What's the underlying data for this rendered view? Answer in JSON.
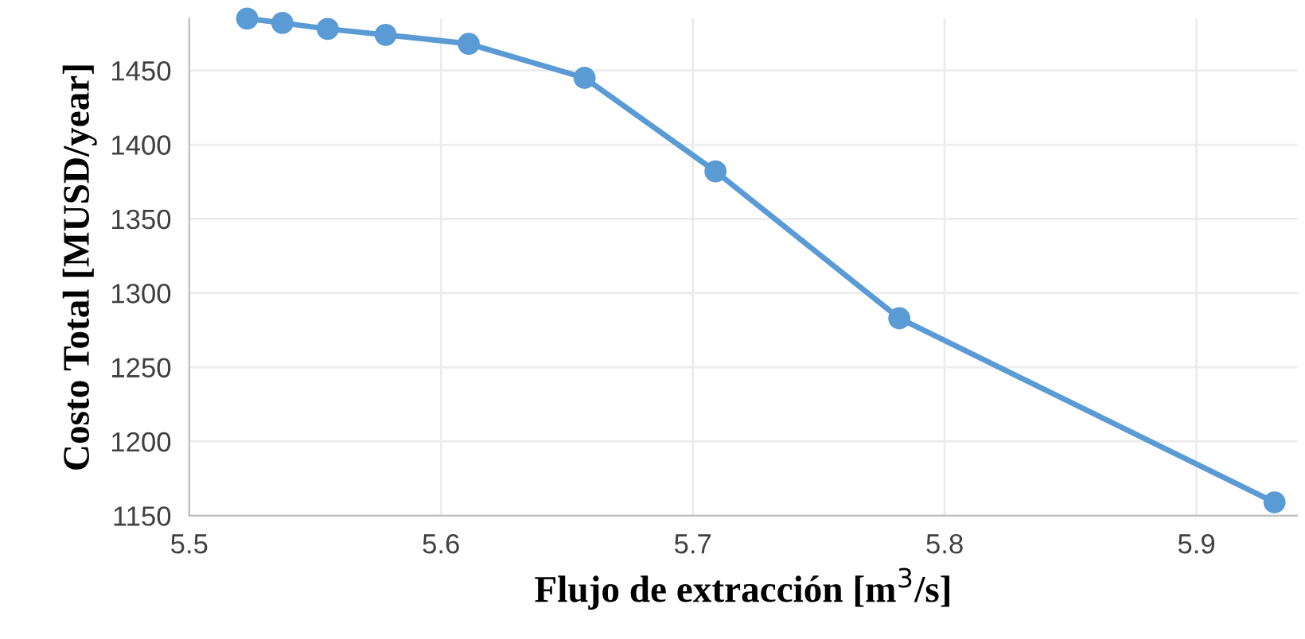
{
  "chart_data": {
    "type": "line",
    "xlabel": "Flujo de extracción [m$^{3}$/s]",
    "ylabel": "Costo Total [MUSD/year]",
    "x": [
      5.523,
      5.537,
      5.555,
      5.578,
      5.611,
      5.657,
      5.709,
      5.782,
      5.931
    ],
    "series": [
      {
        "color": "#5b9bd5",
        "values": [
          1485,
          1482,
          1478,
          1474,
          1468,
          1445,
          1382,
          1283,
          1159
        ]
      }
    ],
    "xlim": [
      5.5,
      5.94
    ],
    "xticks": [
      {
        "value": 5.5,
        "label": "5.5"
      },
      {
        "value": 5.6,
        "label": "5.6"
      },
      {
        "value": 5.7,
        "label": "5.7"
      },
      {
        "value": 5.8,
        "label": "5.8"
      },
      {
        "value": 5.9,
        "label": "5.9"
      }
    ],
    "ylim": [
      1150,
      1485
    ],
    "yticks": [
      1150,
      1200,
      1250,
      1300,
      1350,
      1400,
      1450
    ],
    "grid": true,
    "marker": "circle",
    "line_style": "solid"
  }
}
